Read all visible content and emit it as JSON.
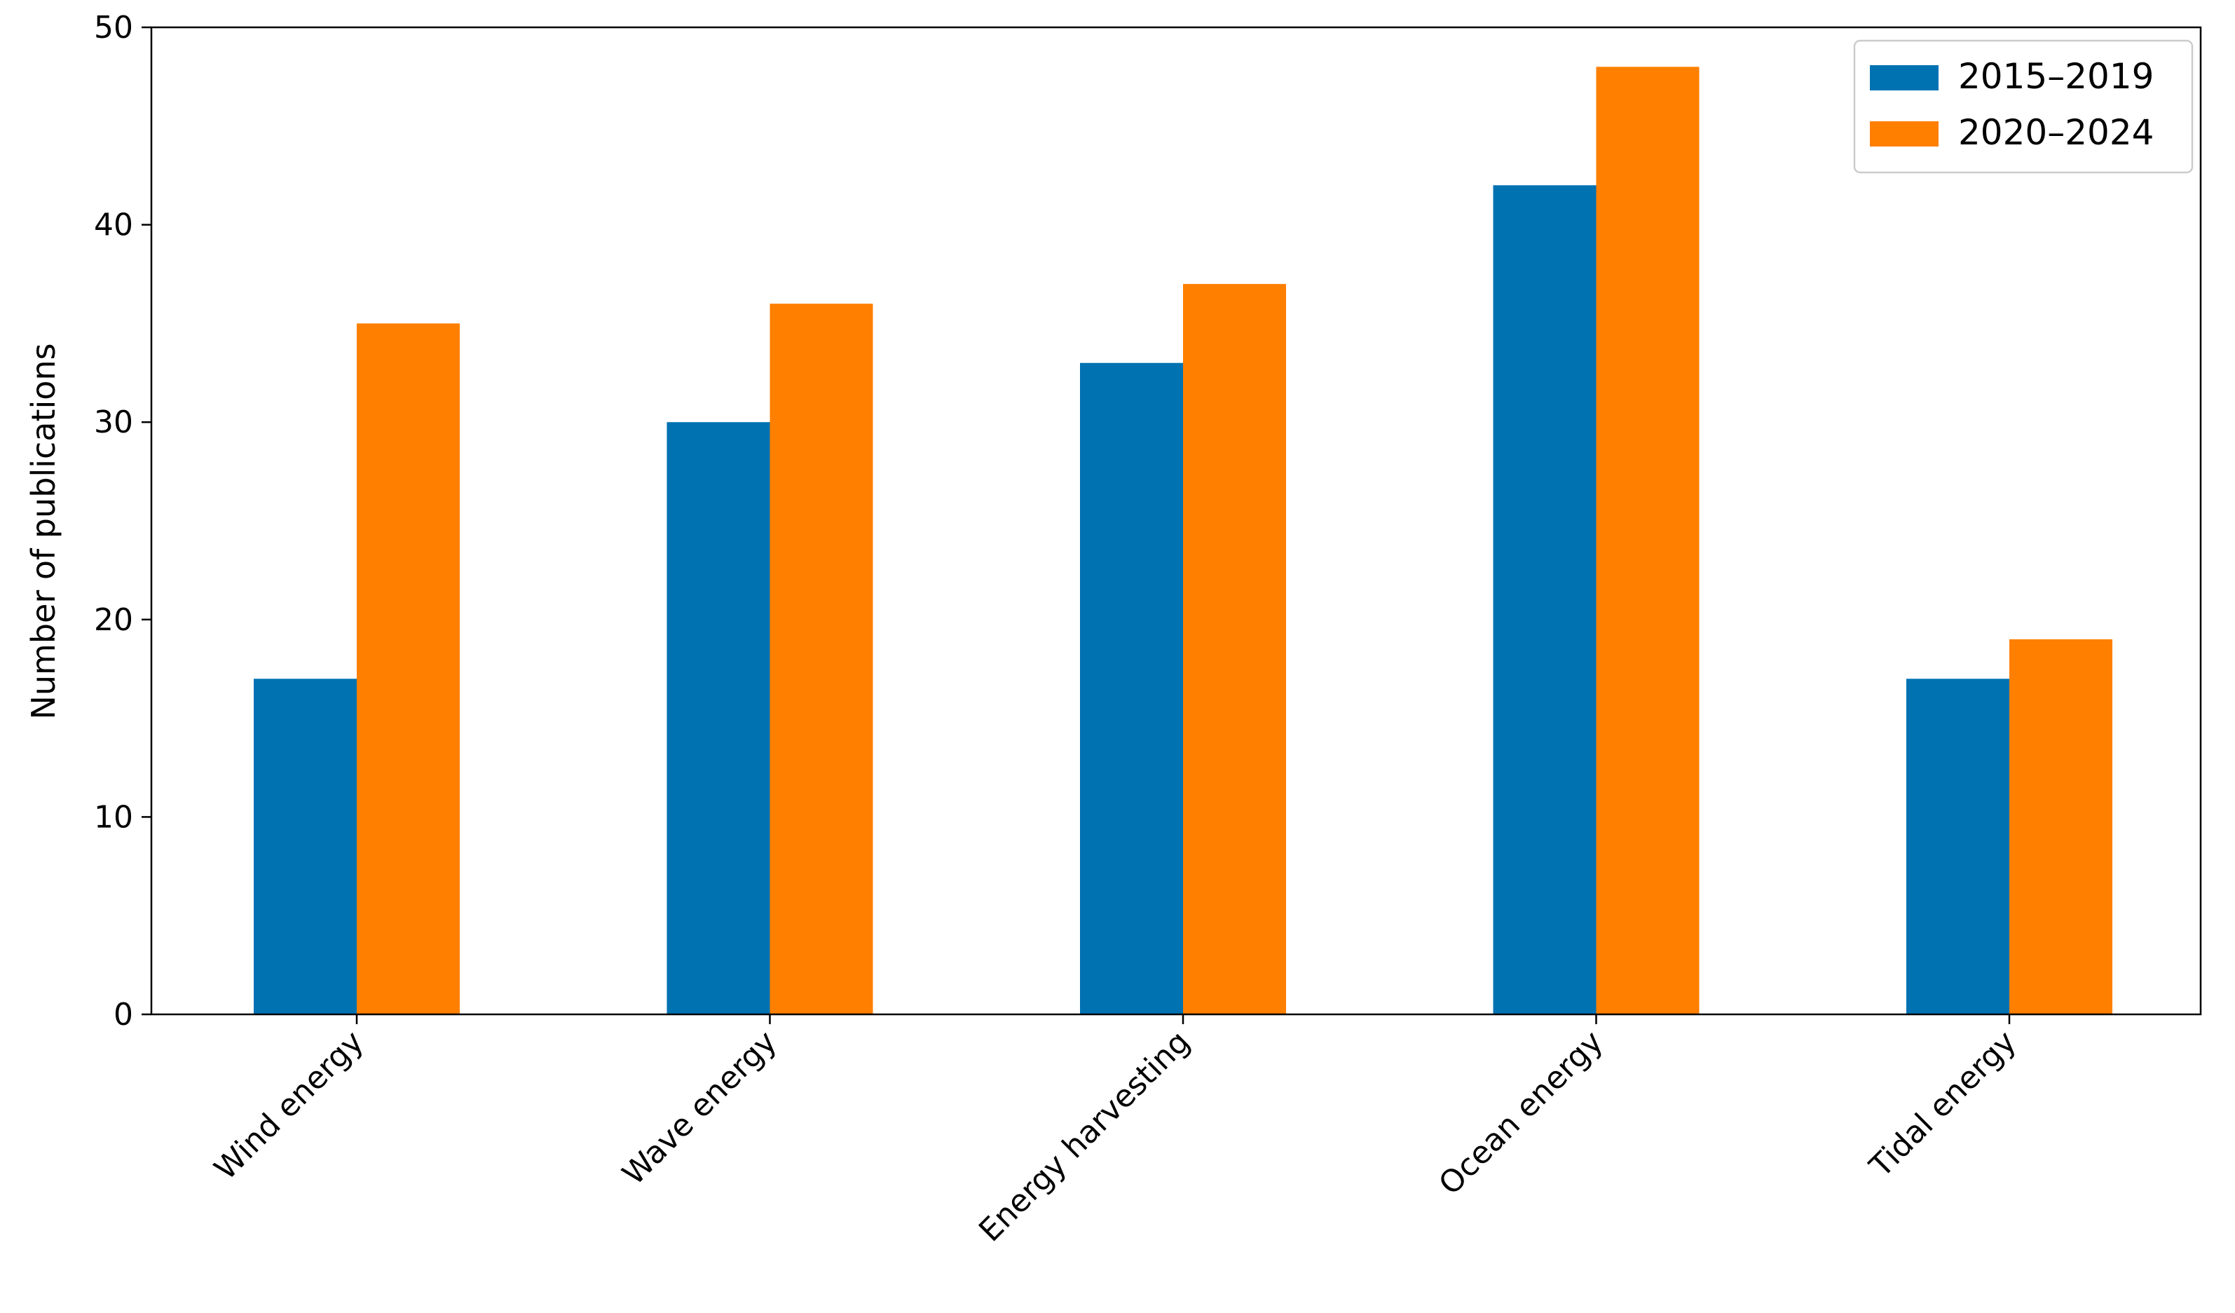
{
  "chart_data": {
    "type": "bar",
    "title": "",
    "xlabel": "",
    "ylabel": "Number of publications",
    "categories": [
      "Wind energy",
      "Wave energy",
      "Energy harvesting",
      "Ocean energy",
      "Tidal energy"
    ],
    "series": [
      {
        "name": "2015–2019",
        "values": [
          17,
          30,
          33,
          42,
          17
        ],
        "color": "#0072B2"
      },
      {
        "name": "2020–2024",
        "values": [
          35,
          36,
          37,
          48,
          19
        ],
        "color": "#FF7F00"
      }
    ],
    "ylim": [
      0,
      50
    ],
    "yticks": [
      "0",
      "10",
      "20",
      "30",
      "40",
      "50"
    ],
    "grid": false,
    "legend_position": "top-right",
    "xtick_rotation": "45 degrees"
  }
}
